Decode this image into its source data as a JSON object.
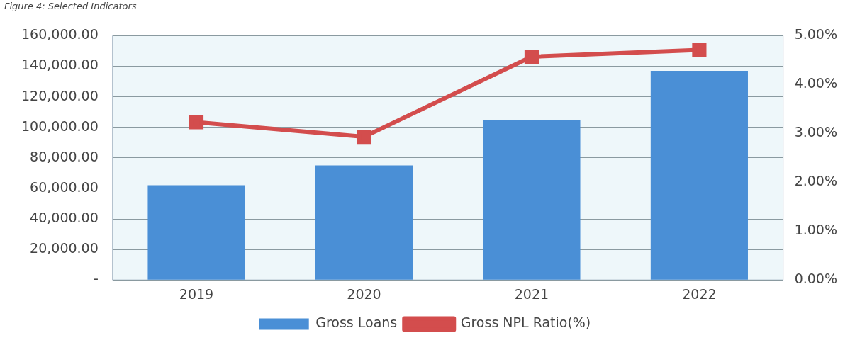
{
  "chart_data": {
    "type": "bar",
    "title": "Figure 4: Selected Indicators",
    "categories": [
      "2019",
      "2020",
      "2021",
      "2022"
    ],
    "series": [
      {
        "name": "Gross Loans",
        "color": "#4a8fd6",
        "values": [
          62000,
          75000,
          105000,
          137000
        ]
      },
      {
        "name": "Gross NPL Ratio(%)",
        "type": "line",
        "axis": "y2",
        "color": "#d34d4d",
        "values": [
          3.23,
          2.93,
          4.57,
          4.71
        ]
      }
    ],
    "ylim": [
      0,
      160000
    ],
    "yticks": [
      {
        "value": 0,
        "label": "-"
      },
      {
        "value": 20000,
        "label": "20,000.00"
      },
      {
        "value": 40000,
        "label": "40,000.00"
      },
      {
        "value": 60000,
        "label": "60,000.00"
      },
      {
        "value": 80000,
        "label": "80,000.00"
      },
      {
        "value": 100000,
        "label": "100,000.00"
      },
      {
        "value": 120000,
        "label": "120,000.00"
      },
      {
        "value": 140000,
        "label": "140,000.00"
      },
      {
        "value": 160000,
        "label": "160,000.00"
      }
    ],
    "y2lim": [
      0,
      5
    ],
    "y2ticks": [
      {
        "value": 0,
        "label": "0.00%"
      },
      {
        "value": 1,
        "label": "1.00%"
      },
      {
        "value": 2,
        "label": "2.00%"
      },
      {
        "value": 3,
        "label": "3.00%"
      },
      {
        "value": 4,
        "label": "4.00%"
      },
      {
        "value": 5,
        "label": "5.00%"
      }
    ],
    "grid": "y",
    "legend": "bottom",
    "marker": "square",
    "line_style": "solid"
  }
}
